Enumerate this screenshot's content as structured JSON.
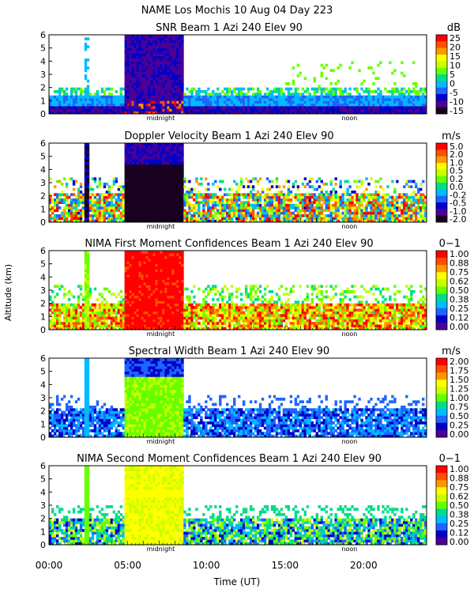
{
  "header": {
    "line1": "NAME Los Mochis   10 Aug 04 Day 223"
  },
  "axes": {
    "ylabel": "Altitude (km)",
    "xlabel": "Time (UT)",
    "xticks": [
      "00:00",
      "05:00",
      "10:00",
      "15:00",
      "20:00"
    ],
    "yticks": [
      "0",
      "1",
      "2",
      "3",
      "4",
      "5",
      "6"
    ],
    "time_markers": {
      "midnight": "midnight",
      "noon": "noon"
    }
  },
  "chart_data": [
    {
      "type": "heatmap",
      "title": "SNR Beam 1 Azi 240 Elev 90",
      "unit": "dB",
      "colorbar_labels": [
        "25",
        "20",
        "15",
        "10",
        "5",
        "0",
        "-5",
        "-10",
        "-15"
      ],
      "colorbar_colors": [
        "#ff0000",
        "#ff5000",
        "#ff9800",
        "#ffff00",
        "#c8ff00",
        "#66ff00",
        "#00dd88",
        "#00bbff",
        "#1e64ff",
        "#0000c8",
        "#4b0096",
        "#1a0020"
      ],
      "x_range_hours": [
        0,
        24
      ],
      "y_range_km": [
        0,
        6
      ]
    },
    {
      "type": "heatmap",
      "title": "Doppler Velocity Beam 1 Azi 240 Elev 90",
      "unit": "m/s",
      "colorbar_labels": [
        "5.0",
        "2.0",
        "1.0",
        "0.5",
        "0.2",
        "0.0",
        "-0.2",
        "-0.5",
        "-1.0",
        "-2.0"
      ],
      "colorbar_colors": [
        "#ff0000",
        "#ff5000",
        "#ff9800",
        "#ffff00",
        "#c8ff00",
        "#66ff00",
        "#00dd88",
        "#00bbff",
        "#1e64ff",
        "#0000c8",
        "#4b0096",
        "#1a0020"
      ],
      "x_range_hours": [
        0,
        24
      ],
      "y_range_km": [
        0,
        6
      ]
    },
    {
      "type": "heatmap",
      "title": "NIMA First Moment Confidences Beam 1 Azi 240 Elev 90",
      "unit": "0−1",
      "colorbar_labels": [
        "1.00",
        "0.88",
        "0.75",
        "0.62",
        "0.50",
        "0.38",
        "0.25",
        "0.12",
        "0.00"
      ],
      "colorbar_colors": [
        "#ff0000",
        "#ff5000",
        "#ff9800",
        "#ffff00",
        "#c8ff00",
        "#66ff00",
        "#00dd88",
        "#00bbff",
        "#1e64ff",
        "#0000c8",
        "#4b0096"
      ],
      "x_range_hours": [
        0,
        24
      ],
      "y_range_km": [
        0,
        6
      ]
    },
    {
      "type": "heatmap",
      "title": "Spectral Width Beam 1 Azi 240 Elev 90",
      "unit": "m/s",
      "colorbar_labels": [
        "2.00",
        "1.75",
        "1.50",
        "1.25",
        "1.00",
        "0.75",
        "0.50",
        "0.25",
        "0.00"
      ],
      "colorbar_colors": [
        "#ff0000",
        "#ff5000",
        "#ff9800",
        "#ffff00",
        "#c8ff00",
        "#66ff00",
        "#00dd88",
        "#00bbff",
        "#1e64ff",
        "#0000c8",
        "#4b0096"
      ],
      "x_range_hours": [
        0,
        24
      ],
      "y_range_km": [
        0,
        6
      ]
    },
    {
      "type": "heatmap",
      "title": "NIMA Second Moment Confidences Beam 1 Azi 240 Elev 90",
      "unit": "0−1",
      "colorbar_labels": [
        "1.00",
        "0.88",
        "0.75",
        "0.62",
        "0.50",
        "0.38",
        "0.25",
        "0.12",
        "0.00"
      ],
      "colorbar_colors": [
        "#ff0000",
        "#ff5000",
        "#ff9800",
        "#ffff00",
        "#c8ff00",
        "#66ff00",
        "#00dd88",
        "#00bbff",
        "#1e64ff",
        "#0000c8",
        "#4b0096"
      ],
      "x_range_hours": [
        0,
        24
      ],
      "y_range_km": [
        0,
        6
      ]
    }
  ]
}
